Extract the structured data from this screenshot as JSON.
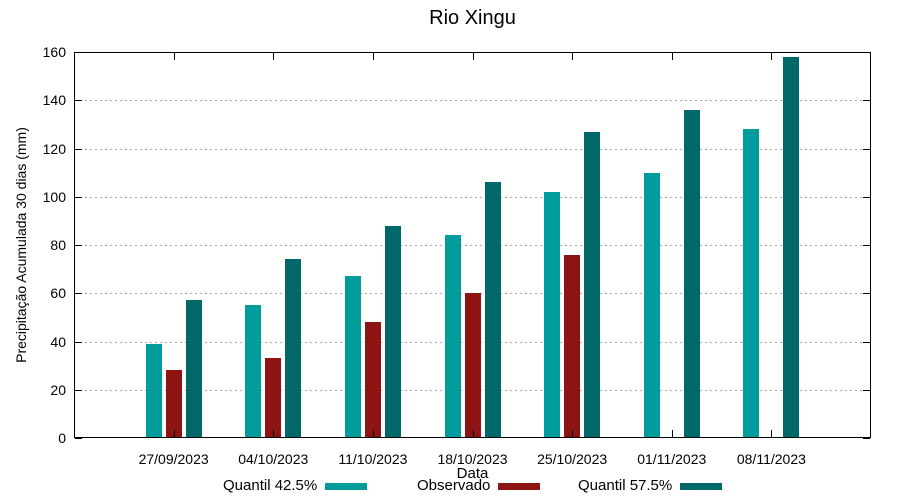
{
  "title": "Rio Xingu",
  "chart_data": {
    "type": "bar",
    "title": "Rio Xingu",
    "xlabel": "Data",
    "ylabel": "Precipitação Acumulada 30 dias (mm)",
    "categories": [
      "27/09/2023",
      "04/10/2023",
      "11/10/2023",
      "18/10/2023",
      "25/10/2023",
      "01/11/2023",
      "08/11/2023"
    ],
    "series": [
      {
        "name": "Quantil 42.5%",
        "color": "#009c9c",
        "values": [
          39,
          55,
          67,
          84,
          102,
          110,
          128
        ]
      },
      {
        "name": "Observado",
        "color": "#8e1414",
        "values": [
          28,
          33,
          48,
          60,
          76,
          null,
          null
        ]
      },
      {
        "name": "Quantil 57.5%",
        "color": "#006868",
        "values": [
          57,
          74,
          88,
          106,
          127,
          136,
          158
        ]
      }
    ],
    "ylim": [
      0,
      160
    ],
    "ytick_step": 20,
    "grid": "horizontal-dashed",
    "grid_color": "#a8a8a8",
    "axis_color": "#000000",
    "background": "#ffffff",
    "legend_position": "bottom"
  }
}
